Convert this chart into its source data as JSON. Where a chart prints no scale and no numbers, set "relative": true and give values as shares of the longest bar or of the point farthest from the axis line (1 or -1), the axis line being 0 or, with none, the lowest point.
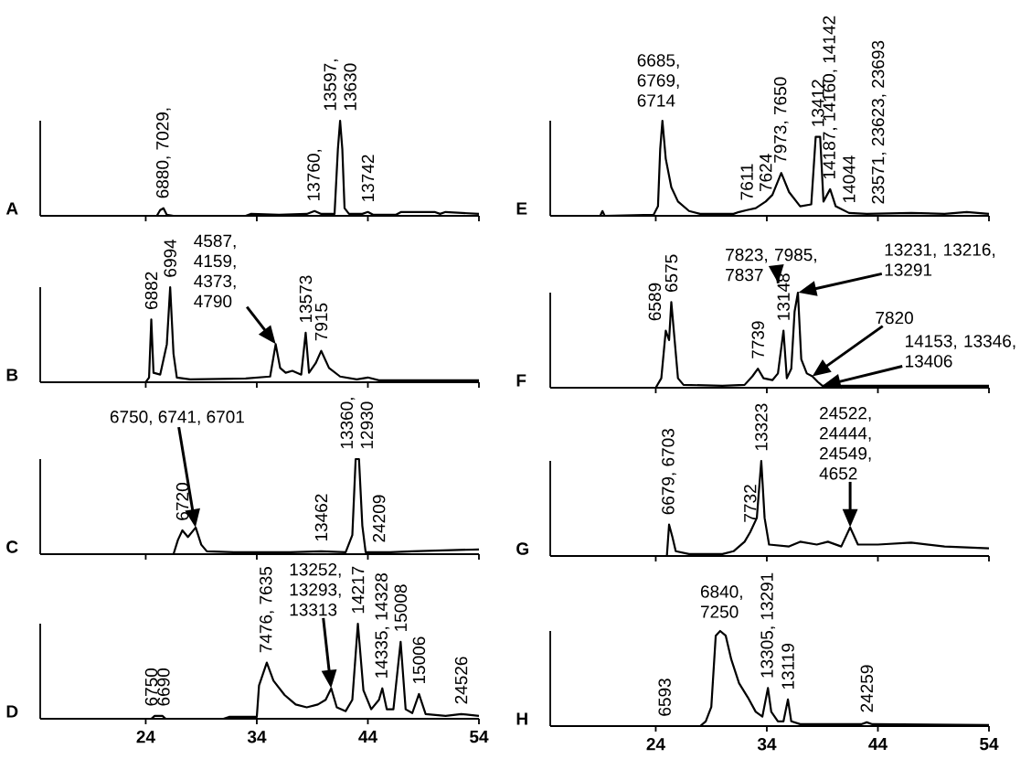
{
  "chart_data": [
    {
      "type": "line",
      "title": "A",
      "relative": true,
      "color": "#000000",
      "xlim": [
        14.5,
        54
      ],
      "xticks": [
        24,
        34,
        44,
        54
      ],
      "tick_labels": false,
      "x": [
        14.5,
        25,
        25.3,
        25.6,
        25.9,
        26.5,
        33,
        33.5,
        36,
        38.5,
        39.2,
        39.8,
        41,
        41.3,
        41.5,
        41.7,
        41.9,
        42.3,
        43.5,
        44,
        44.5,
        46.5,
        47,
        50,
        50.5,
        51,
        54
      ],
      "values": [
        0,
        0,
        0.06,
        0.08,
        0.01,
        0,
        0,
        0.02,
        0.01,
        0.02,
        0.05,
        0.02,
        0.02,
        0.7,
        1,
        0.7,
        0.08,
        0.02,
        0.02,
        0.04,
        0.01,
        0.01,
        0.04,
        0.04,
        0.02,
        0.04,
        0.02
      ],
      "annotations": [
        {
          "text": "6880, 7029,",
          "x": 25.6,
          "y": 0.08
        },
        {
          "text": "13760,",
          "x": 39.2,
          "y": 0.05
        },
        {
          "text": "13597, 13630",
          "x": 41.5,
          "y": 1
        },
        {
          "text": "13742",
          "x": 44,
          "y": 0.04
        }
      ]
    },
    {
      "type": "line",
      "title": "B",
      "relative": true,
      "color": "#000000",
      "xlim": [
        14.5,
        54
      ],
      "xticks": [
        24,
        34,
        44,
        54
      ],
      "tick_labels": false,
      "x": [
        14.5,
        24,
        24.3,
        24.5,
        24.7,
        25.3,
        25.9,
        26.2,
        26.5,
        26.8,
        28,
        33,
        35.2,
        35.7,
        36.1,
        36.6,
        37.2,
        38,
        38.4,
        38.7,
        39.3,
        39.8,
        40.5,
        41.5,
        43,
        44,
        45,
        54
      ],
      "values": [
        0,
        0,
        0.05,
        0.66,
        0.1,
        0.08,
        0.4,
        1,
        0.3,
        0.05,
        0.03,
        0.04,
        0.06,
        0.4,
        0.15,
        0.1,
        0.12,
        0.08,
        0.52,
        0.1,
        0.2,
        0.33,
        0.15,
        0.06,
        0.03,
        0.05,
        0.02,
        0.02
      ],
      "annotations": [
        {
          "text": "6882",
          "x": 24.5,
          "y": 0.66
        },
        {
          "text": "6994",
          "x": 26.2,
          "y": 1
        },
        "4587, 4159, 4373, 4790",
        {
          "text": "13573",
          "x": 38.4,
          "y": 0.52
        },
        {
          "text": "7915",
          "x": 39.8,
          "y": 0.33
        }
      ]
    },
    {
      "type": "line",
      "title": "C",
      "relative": true,
      "color": "#000000",
      "xlim": [
        14.5,
        54
      ],
      "xticks": [
        24,
        34,
        44,
        54
      ],
      "tick_labels": false,
      "x": [
        14.5,
        26.5,
        26.9,
        27.3,
        27.8,
        28.5,
        29,
        29.5,
        32,
        37,
        39.8,
        42,
        42.6,
        42.9,
        43.2,
        43.5,
        43.8,
        46,
        48,
        54
      ],
      "values": [
        0,
        0,
        0.15,
        0.25,
        0.18,
        0.28,
        0.1,
        0.03,
        0.02,
        0.02,
        0.03,
        0.02,
        0.2,
        1,
        1,
        0.3,
        0.02,
        0.02,
        0.03,
        0.05
      ],
      "annotations": [
        "6750, 6741, 6701",
        {
          "text": "6720",
          "x": 27.3,
          "y": 0.25
        },
        {
          "text": "13462",
          "x": 39.8,
          "y": 0.03
        },
        {
          "text": "13360, 12930",
          "x": 43,
          "y": 1
        },
        {
          "text": "24209",
          "x": 45,
          "y": 0.02
        }
      ]
    },
    {
      "type": "line",
      "title": "D",
      "relative": true,
      "color": "#000000",
      "xlim": [
        14.5,
        54
      ],
      "xticks": [
        24,
        34,
        44,
        54
      ],
      "tick_labels": "x",
      "x": [
        14.5,
        24.5,
        24.8,
        25.5,
        25.8,
        31,
        31.5,
        34,
        34.2,
        34.9,
        35.5,
        36.5,
        37.5,
        38.5,
        39.5,
        40.2,
        40.7,
        41.2,
        42,
        42.6,
        43.1,
        43.6,
        44.3,
        45,
        45.3,
        45.7,
        46.3,
        46.95,
        47.4,
        48,
        48.6,
        49.2,
        51,
        52.4,
        54
      ],
      "values": [
        0,
        0,
        0.03,
        0.03,
        0,
        0,
        0.02,
        0.02,
        0.35,
        0.59,
        0.4,
        0.25,
        0.15,
        0.12,
        0.15,
        0.2,
        0.32,
        0.12,
        0.08,
        0.2,
        1,
        0.3,
        0.1,
        0.2,
        0.32,
        0.1,
        0.1,
        0.81,
        0.1,
        0.06,
        0.26,
        0.05,
        0.03,
        0.05,
        0.03
      ],
      "annotations": [
        {
          "text": "6750",
          "x": 24.5,
          "y": 0.03
        },
        {
          "text": "6690",
          "x": 25.6,
          "y": 0.03
        },
        {
          "text": "7476, 7635",
          "x": 34.9,
          "y": 0.59
        },
        "13252, 13293, 13313",
        {
          "text": "14217",
          "x": 43.1,
          "y": 1
        },
        {
          "text": "14335, 14328",
          "x": 45.3,
          "y": 0.32
        },
        {
          "text": "15008",
          "x": 46.95,
          "y": 0.81
        },
        {
          "text": "15006",
          "x": 48.6,
          "y": 0.26
        },
        {
          "text": "24526",
          "x": 52.4,
          "y": 0.05
        }
      ]
    },
    {
      "type": "line",
      "title": "E",
      "relative": true,
      "color": "#000000",
      "xlim": [
        14.5,
        54
      ],
      "xticks": [
        24,
        34,
        44,
        54
      ],
      "tick_labels": false,
      "x": [
        14.5,
        19,
        19.2,
        19.4,
        23.8,
        24.2,
        24.4,
        24.6,
        24.9,
        25.4,
        26,
        27,
        28,
        31,
        31.5,
        32.2,
        33,
        33.9,
        34.5,
        35.3,
        36,
        37,
        38,
        38.4,
        38.8,
        39.1,
        39.7,
        40.2,
        41.4,
        43,
        47,
        50,
        52,
        54
      ],
      "values": [
        0,
        0,
        0.05,
        0,
        0.01,
        0.1,
        0.7,
        1,
        0.6,
        0.3,
        0.15,
        0.05,
        0.02,
        0.02,
        0.04,
        0.06,
        0.08,
        0.15,
        0.22,
        0.45,
        0.25,
        0.1,
        0.12,
        0.83,
        0.83,
        0.15,
        0.28,
        0.1,
        0.03,
        0.02,
        0.03,
        0.02,
        0.04,
        0.02
      ],
      "annotations": [
        {
          "text": "6685, 6769, 6714",
          "x": 24.6,
          "y": 1
        },
        {
          "text": "7611",
          "x": 32.2,
          "y": 0.06
        },
        {
          "text": "7624",
          "x": 33.9,
          "y": 0.15
        },
        {
          "text": "7973, 7650",
          "x": 35.3,
          "y": 0.45
        },
        {
          "text": "13412",
          "x": 38.6,
          "y": 0.83
        },
        {
          "text": "14187, 14160, 14142",
          "x": 39.7,
          "y": 0.28
        },
        {
          "text": "14044",
          "x": 41.4,
          "y": 0.03
        },
        {
          "text": "23571, 23623, 23693",
          "x": 44.1,
          "y": 0.02
        }
      ]
    },
    {
      "type": "line",
      "title": "F",
      "relative": true,
      "color": "#000000",
      "xlim": [
        14.5,
        54
      ],
      "xticks": [
        24,
        34,
        44,
        54
      ],
      "tick_labels": false,
      "x": [
        14.5,
        24,
        24.5,
        24.9,
        25.2,
        25.4,
        25.7,
        26,
        26.5,
        30,
        32,
        32.7,
        33.2,
        33.7,
        34.5,
        35,
        35.5,
        35.8,
        36.2,
        36.5,
        36.8,
        37.1,
        37.6,
        38.1,
        38.6,
        39,
        54
      ],
      "values": [
        0,
        0,
        0.1,
        0.6,
        0.5,
        0.9,
        0.5,
        0.1,
        0.03,
        0.02,
        0.03,
        0.12,
        0.2,
        0.1,
        0.08,
        0.15,
        0.6,
        0.1,
        0.2,
        0.8,
        1,
        0.3,
        0.15,
        0.12,
        0.06,
        0.02,
        0.02
      ],
      "annotations": [
        {
          "text": "6589",
          "x": 24.9,
          "y": 0.6
        },
        {
          "text": "6575",
          "x": 25.4,
          "y": 0.9
        },
        {
          "text": "7739",
          "x": 33.2,
          "y": 0.2
        },
        {
          "text": "13148",
          "x": 35.5,
          "y": 0.6
        },
        {
          "text": "7823, 7985, 7837",
          "x": 35.5,
          "y": 0.6
        },
        "13231, 13216, 13291",
        "7820",
        "14153, 13346, 13406"
      ]
    },
    {
      "type": "line",
      "title": "G",
      "relative": true,
      "color": "#000000",
      "xlim": [
        14.5,
        54
      ],
      "xticks": [
        24,
        34,
        44,
        54
      ],
      "tick_labels": false,
      "x": [
        14.5,
        25,
        25.2,
        25.5,
        25.8,
        27,
        30,
        31,
        32,
        32.5,
        33.1,
        33.5,
        33.8,
        34.2,
        36,
        37,
        38.5,
        39.5,
        40.7,
        41.5,
        42.2,
        44,
        47,
        50,
        54
      ],
      "values": [
        0,
        0,
        0.33,
        0.2,
        0.05,
        0.02,
        0.02,
        0.05,
        0.15,
        0.25,
        0.4,
        1,
        0.4,
        0.12,
        0.1,
        0.15,
        0.12,
        0.15,
        0.1,
        0.3,
        0.12,
        0.12,
        0.14,
        0.1,
        0.08
      ],
      "annotations": [
        {
          "text": "6679, 6703",
          "x": 25.2,
          "y": 0.33
        },
        {
          "text": "7732",
          "x": 32.5,
          "y": 0.25
        },
        {
          "text": "13323",
          "x": 33.5,
          "y": 1
        },
        {
          "text": "24522, 24444, 24549, 4652",
          "x": 41.5,
          "y": 0.3
        }
      ]
    },
    {
      "type": "line",
      "title": "H",
      "relative": true,
      "color": "#000000",
      "xlim": [
        14.5,
        54
      ],
      "xticks": [
        24,
        34,
        44,
        54
      ],
      "tick_labels": "x",
      "x": [
        14.5,
        28,
        28.5,
        29,
        29.4,
        29.8,
        30.3,
        30.8,
        31.5,
        32.3,
        33,
        33.6,
        34.1,
        34.4,
        35,
        35.5,
        35.9,
        36.2,
        37,
        42.5,
        43,
        43.5,
        54
      ],
      "values": [
        0,
        0,
        0.05,
        0.2,
        0.95,
        1,
        0.95,
        0.7,
        0.45,
        0.3,
        0.15,
        0.1,
        0.4,
        0.15,
        0.05,
        0.05,
        0.28,
        0.05,
        0.02,
        0.02,
        0.04,
        0.02,
        0.01
      ],
      "annotations": [
        {
          "text": "6593",
          "x": 24.8,
          "y": 0
        },
        {
          "text": "6840, 7250",
          "x": 30.3,
          "y": 1
        },
        {
          "text": "13305, 13291",
          "x": 34.1,
          "y": 0.4
        },
        {
          "text": "13119",
          "x": 35.9,
          "y": 0.28
        },
        {
          "text": "24259",
          "x": 43,
          "y": 0.04
        }
      ]
    }
  ]
}
